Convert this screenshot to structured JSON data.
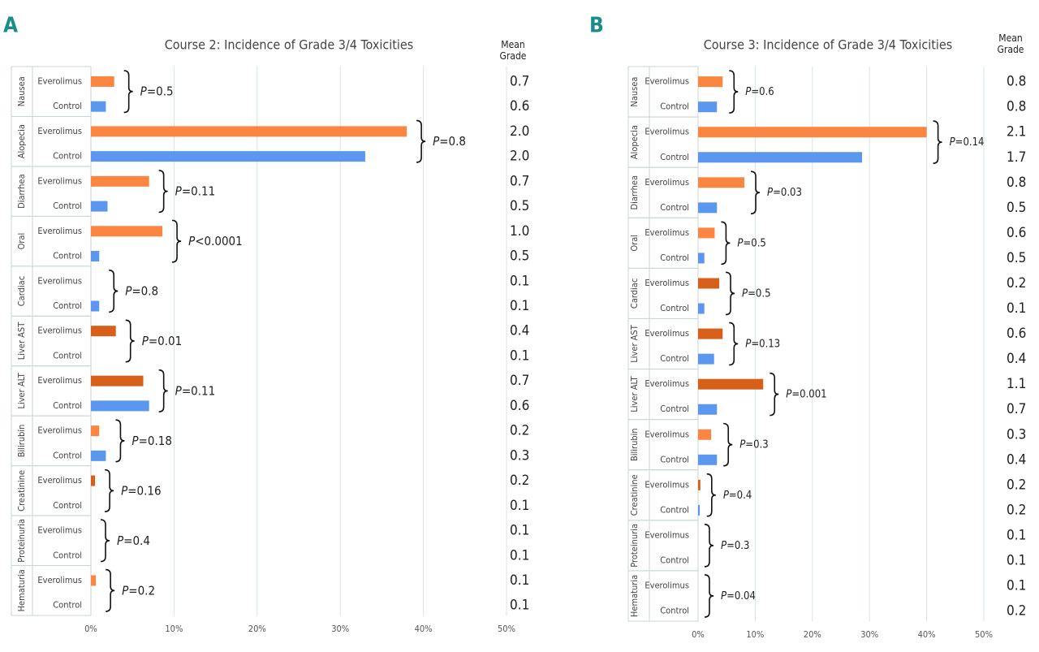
{
  "chart_data": [
    {
      "type": "bar",
      "panel": "A",
      "title": "Course 2: Incidence of Grade 3/4 Toxicities",
      "mean_grade_title": "Mean Grade",
      "categories": [
        "Nausea",
        "Alopecia",
        "Diarrhea",
        "Oral",
        "Cardiac",
        "Liver AST",
        "Liver ALT",
        "Bilirubin",
        "Creatinine",
        "Proteinuria",
        "Hematuria"
      ],
      "series": [
        {
          "name": "Everolimus",
          "color": "#fa8642",
          "values": [
            2.8,
            38,
            7,
            8.6,
            0,
            3,
            6.3,
            1,
            0.5,
            0,
            0.6
          ],
          "colors": [
            "#fa8642",
            "#fa8642",
            "#fa8642",
            "#fa8642",
            "#d6601a",
            "#d6601a",
            "#d6601a",
            "#fa8642",
            "#d6601a",
            "#d6601a",
            "#fa8642"
          ]
        },
        {
          "name": "Control",
          "color": "#5b97ee",
          "values": [
            1.8,
            33,
            2,
            1,
            1,
            0,
            7,
            1.8,
            0,
            0,
            0
          ]
        }
      ],
      "p_values": [
        "P=0.5",
        "P=0.8",
        "P=0.11",
        "P<0.0001",
        "P=0.8",
        "P=0.01",
        "P=0.11",
        "P=0.18",
        "P=0.16",
        "P=0.4",
        "P=0.2"
      ],
      "mean_grades": [
        [
          "0.7",
          "0.6"
        ],
        [
          "2.0",
          "2.0"
        ],
        [
          "0.7",
          "0.5"
        ],
        [
          "1.0",
          "0.5"
        ],
        [
          "0.1",
          "0.1"
        ],
        [
          "0.4",
          "0.1"
        ],
        [
          "0.7",
          "0.6"
        ],
        [
          "0.2",
          "0.3"
        ],
        [
          "0.2",
          "0.1"
        ],
        [
          "0.1",
          "0.1"
        ],
        [
          "0.1",
          "0.1"
        ]
      ],
      "xlim": [
        0,
        50
      ],
      "xticks": [
        {
          "value": 0,
          "label": "0%"
        },
        {
          "value": 10,
          "label": "10%"
        },
        {
          "value": 20,
          "label": "20%"
        },
        {
          "value": 30,
          "label": "30%"
        },
        {
          "value": 40,
          "label": "40%"
        },
        {
          "value": 50,
          "label": "50%"
        }
      ],
      "grid": true
    },
    {
      "type": "bar",
      "panel": "B",
      "title": "Course 3: Incidence of Grade 3/4 Toxicities",
      "mean_grade_title": "Mean Grade",
      "categories": [
        "Nausea",
        "Alopecia",
        "Diarrhea",
        "Oral",
        "Cardiac",
        "Liver AST",
        "Liver ALT",
        "Bilirubin",
        "Creatinine",
        "Proteinuria",
        "Hematuria"
      ],
      "series": [
        {
          "name": "Everolimus",
          "color": "#fa8642",
          "values": [
            4.3,
            40,
            8.1,
            2.9,
            3.7,
            4.3,
            11.4,
            2.3,
            0.4,
            0,
            0
          ],
          "colors": [
            "#fa8642",
            "#fa8642",
            "#fa8642",
            "#fa8642",
            "#d6601a",
            "#d6601a",
            "#d6601a",
            "#fa8642",
            "#d6601a",
            "#d6601a",
            "#fa8642"
          ]
        },
        {
          "name": "Control",
          "color": "#5b97ee",
          "values": [
            3.3,
            28.7,
            3.3,
            1.1,
            1.1,
            2.8,
            3.3,
            3.3,
            0.3,
            0,
            0
          ]
        }
      ],
      "p_values": [
        "P=0.6",
        "P=0.14",
        "P=0.03",
        "P=0.5",
        "P=0.5",
        "P=0.13",
        "P=0.001",
        "P=0.3",
        "P=0.4",
        "P=0.3",
        "P=0.04"
      ],
      "mean_grades": [
        [
          "0.8",
          "0.8"
        ],
        [
          "2.1",
          "1.7"
        ],
        [
          "0.8",
          "0.5"
        ],
        [
          "0.6",
          "0.5"
        ],
        [
          "0.2",
          "0.1"
        ],
        [
          "0.6",
          "0.4"
        ],
        [
          "1.1",
          "0.7"
        ],
        [
          "0.3",
          "0.4"
        ],
        [
          "0.2",
          "0.2"
        ],
        [
          "0.1",
          "0.1"
        ],
        [
          "0.1",
          "0.2"
        ]
      ],
      "xlim": [
        0,
        50
      ],
      "xticks": [
        {
          "value": 0,
          "label": "0%"
        },
        {
          "value": 10,
          "label": "10%"
        },
        {
          "value": 20,
          "label": "20%"
        },
        {
          "value": 30,
          "label": "30%"
        },
        {
          "value": 40,
          "label": "40%"
        },
        {
          "value": 50,
          "label": "50%"
        }
      ],
      "grid": true
    }
  ]
}
